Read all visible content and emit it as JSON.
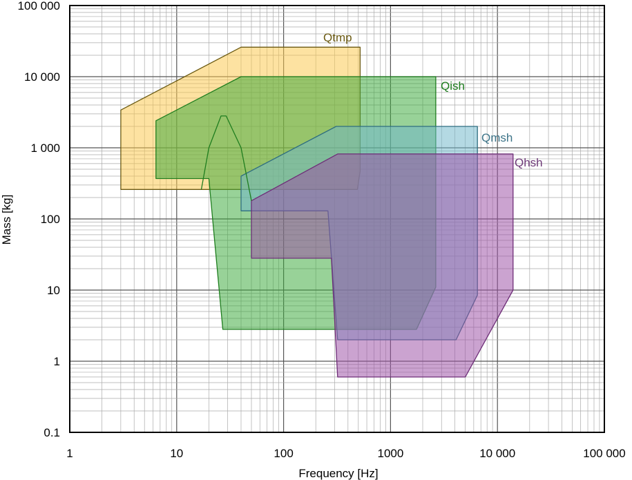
{
  "chart_data": {
    "type": "area",
    "xlabel": "Frequency [Hz]",
    "ylabel": "Mass [kg]",
    "xscale": "log",
    "yscale": "log",
    "xlim": [
      1,
      100000
    ],
    "ylim": [
      0.1,
      100000
    ],
    "grid": true,
    "x_ticks": [
      {
        "value": 1,
        "label": "1"
      },
      {
        "value": 10,
        "label": "10"
      },
      {
        "value": 100,
        "label": "100"
      },
      {
        "value": 1000,
        "label": "1000"
      },
      {
        "value": 10000,
        "label": "10 000"
      },
      {
        "value": 100000,
        "label": "100 000"
      }
    ],
    "y_ticks": [
      {
        "value": 0.1,
        "label": "0.1"
      },
      {
        "value": 1,
        "label": "1"
      },
      {
        "value": 10,
        "label": "10"
      },
      {
        "value": 100,
        "label": "100"
      },
      {
        "value": 1000,
        "label": "1 000"
      },
      {
        "value": 10000,
        "label": "10 000"
      },
      {
        "value": 100000,
        "label": "100 000"
      }
    ],
    "series": [
      {
        "name": "Qtmp",
        "fill": "#fbc84a",
        "stroke": "#6b5a12",
        "label_color": "#6b5a12",
        "points": [
          [
            3,
            260
          ],
          [
            3,
            3400
          ],
          [
            40,
            26000
          ],
          [
            520,
            26000
          ],
          [
            520,
            470
          ],
          [
            490,
            260
          ],
          [
            3,
            260
          ]
        ]
      },
      {
        "name": "Qish",
        "fill": "#3aa83a",
        "stroke": "#1e7d1e",
        "label_color": "#1e7d1e",
        "points": [
          [
            6.4,
            370
          ],
          [
            6.4,
            2400
          ],
          [
            40,
            10000
          ],
          [
            2650,
            10000
          ],
          [
            2650,
            11
          ],
          [
            1750,
            2.8
          ],
          [
            27,
            2.8
          ],
          [
            20,
            370
          ],
          [
            6.4,
            370
          ]
        ]
      },
      {
        "name": "Qmsh",
        "fill": "#6fb7c9",
        "stroke": "#2f6e80",
        "label_color": "#3d7488",
        "points": [
          [
            40,
            130
          ],
          [
            40,
            400
          ],
          [
            310,
            2000
          ],
          [
            6500,
            2000
          ],
          [
            6500,
            8.5
          ],
          [
            4100,
            2
          ],
          [
            320,
            2
          ],
          [
            260,
            130
          ],
          [
            40,
            130
          ]
        ]
      },
      {
        "name": "Qhsh",
        "fill": "#9b4ea5",
        "stroke": "#6e2e78",
        "label_color": "#6e3a78",
        "points": [
          [
            50,
            28
          ],
          [
            50,
            180
          ],
          [
            320,
            820
          ],
          [
            14000,
            820
          ],
          [
            14000,
            10
          ],
          [
            5000,
            0.6
          ],
          [
            320,
            0.6
          ],
          [
            280,
            28
          ],
          [
            50,
            28
          ]
        ]
      }
    ],
    "extra_outlines": [
      {
        "series": "Qish",
        "points": [
          [
            17,
            260
          ],
          [
            20,
            1000
          ],
          [
            26,
            2800
          ],
          [
            29,
            2800
          ],
          [
            40,
            1000
          ],
          [
            50,
            180
          ]
        ]
      }
    ]
  }
}
